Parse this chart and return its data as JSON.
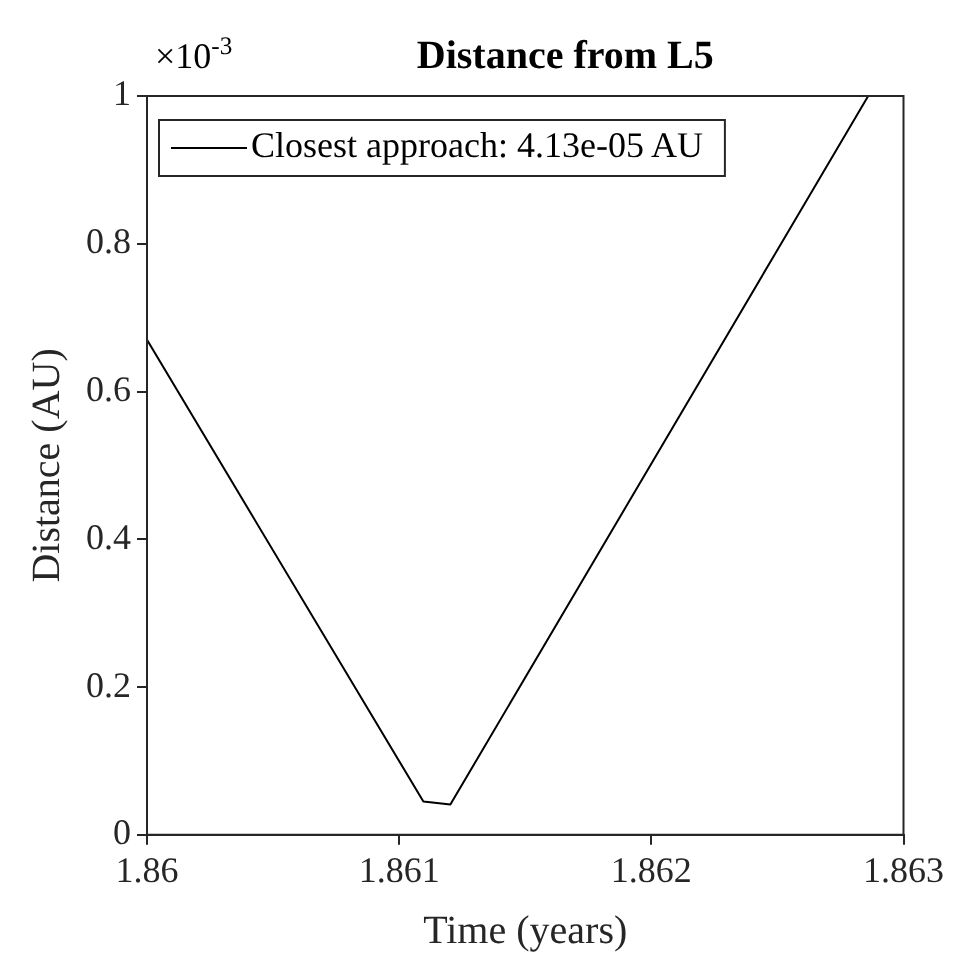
{
  "chart_data": {
    "type": "line",
    "title": "Distance from L5",
    "xlabel": "Time (years)",
    "ylabel": "Distance (AU)",
    "annotations": [
      "×10$^{-3}$"
    ],
    "x": [
      1.86,
      1.861096,
      1.861203,
      1.86286
    ],
    "series": [
      {
        "name": "Closest approach: 4.13e-05 AU",
        "color": "#000000",
        "values": [
          0.67,
          0.045,
          0.041,
          1.0
        ]
      }
    ],
    "xlim": [
      1.86,
      1.863
    ],
    "xticks": [
      1.86,
      1.861,
      1.862,
      1.863
    ],
    "ylim": [
      0,
      1
    ],
    "yticks": [
      0,
      0.2,
      0.4,
      0.6,
      0.8,
      1
    ],
    "grid": false,
    "legend": "top",
    "marker": "none",
    "line_style": "solid"
  }
}
